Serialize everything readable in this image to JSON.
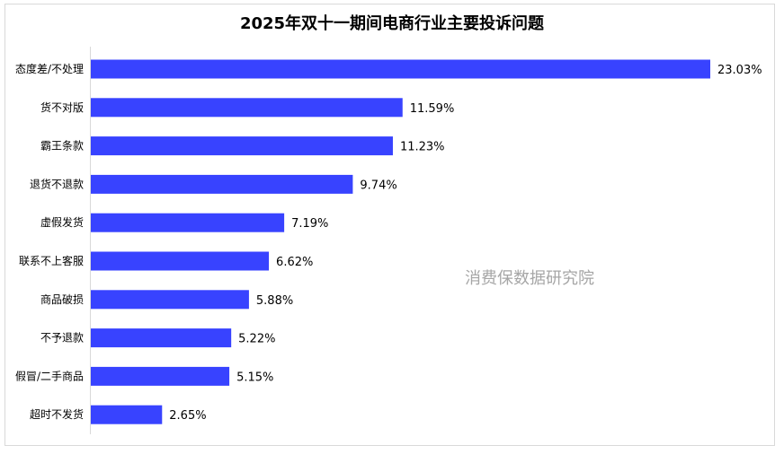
{
  "chart_data": {
    "type": "bar",
    "orientation": "horizontal",
    "title": "2025年双十一期间电商行业主要投诉问题",
    "categories": [
      "态度差/不处理",
      "货不对版",
      "霸王条款",
      "退货不退款",
      "虚假发货",
      "联系不上客服",
      "商品破损",
      "不予退款",
      "假冒/二手商品",
      "超时不发货"
    ],
    "values": [
      23.03,
      11.59,
      11.23,
      9.74,
      7.19,
      6.62,
      5.88,
      5.22,
      5.15,
      2.65
    ],
    "value_labels": [
      "23.03%",
      "11.59%",
      "11.23%",
      "9.74%",
      "7.19%",
      "6.62%",
      "5.88%",
      "5.22%",
      "5.15%",
      "2.65%"
    ],
    "unit": "%",
    "xlim": [
      0,
      23.03
    ],
    "grid": false,
    "bar_color": "#3843ff"
  },
  "watermark": "消费保数据研究院"
}
